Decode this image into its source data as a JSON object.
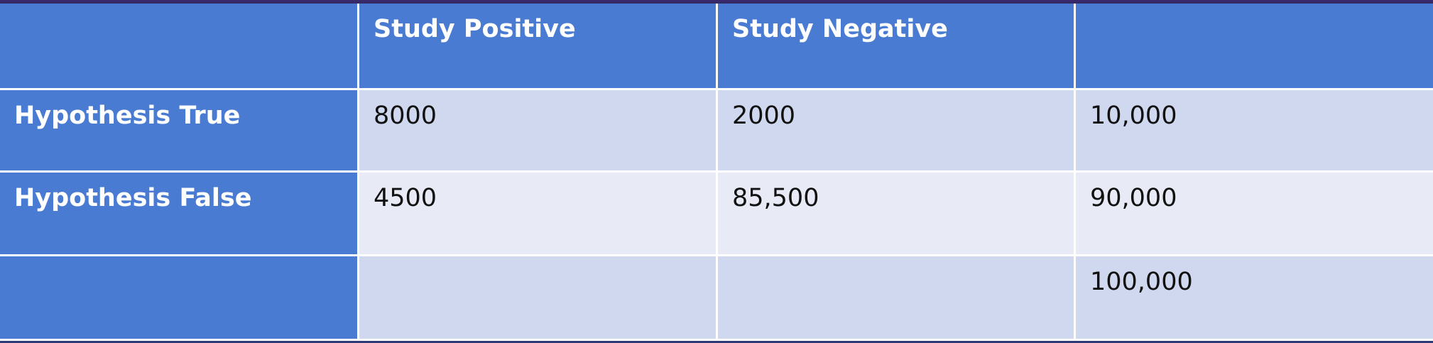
{
  "table": {
    "columns": [
      "Study Positive",
      "Study Negative"
    ],
    "rows": [
      {
        "label": "Hypothesis True",
        "cells": [
          "8000",
          "2000",
          "10,000"
        ]
      },
      {
        "label": "Hypothesis False",
        "cells": [
          "4500",
          "85,500",
          "90,000"
        ]
      }
    ],
    "grand_total": "100,000"
  }
}
